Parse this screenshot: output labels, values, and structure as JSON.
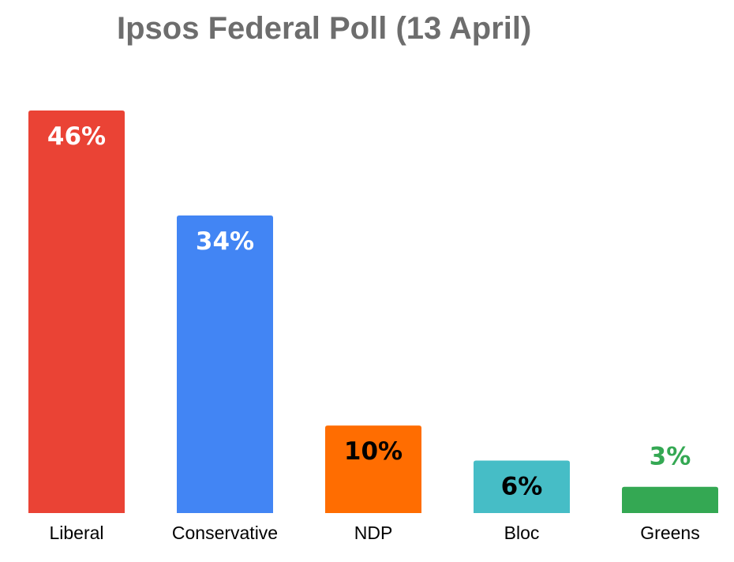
{
  "chart_data": {
    "type": "bar",
    "title": "Ipsos Federal Poll (13 April)",
    "xlabel": "",
    "ylabel": "",
    "ylim": [
      0,
      46
    ],
    "grid": false,
    "legend": "none",
    "categories": [
      "Liberal",
      "Conservative",
      "NDP",
      "Bloc",
      "Greens"
    ],
    "values": [
      46,
      34,
      10,
      6,
      3
    ],
    "data_labels": [
      "46%",
      "34%",
      "10%",
      "6%",
      "3%"
    ],
    "colors": [
      "#ea4335",
      "#4285f4",
      "#ff6d01",
      "#46bdc6",
      "#34a853"
    ],
    "label_colors": [
      "#ffffff",
      "#ffffff",
      "#000000",
      "#000000",
      "#34a853"
    ]
  }
}
